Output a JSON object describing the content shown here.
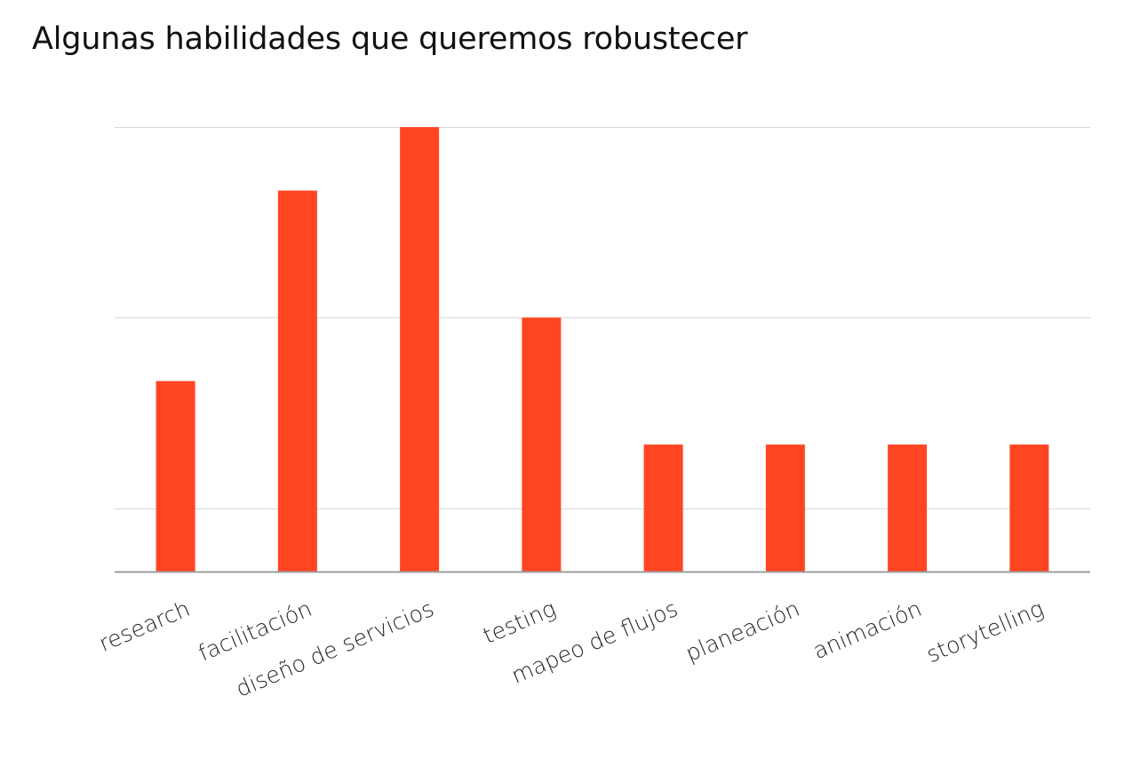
{
  "chart_data": {
    "type": "bar",
    "title": "Algunas habilidades que queremos robustecer",
    "categories": [
      "research",
      "facilitación",
      "diseño de servicios",
      "testing",
      "mapeo de flujos",
      "planeación",
      "animación",
      "storytelling"
    ],
    "values": [
      3,
      6,
      7,
      4,
      2,
      2,
      2,
      2
    ],
    "ylim": [
      0,
      7
    ],
    "gridlines_at": [
      1,
      4,
      7
    ],
    "xlabel": "",
    "ylabel": "",
    "grid": true,
    "legend": "none",
    "bar_color": "#ff4521",
    "gridline_color": "#d9d9d9",
    "axis_color": "#9e9e9e"
  }
}
